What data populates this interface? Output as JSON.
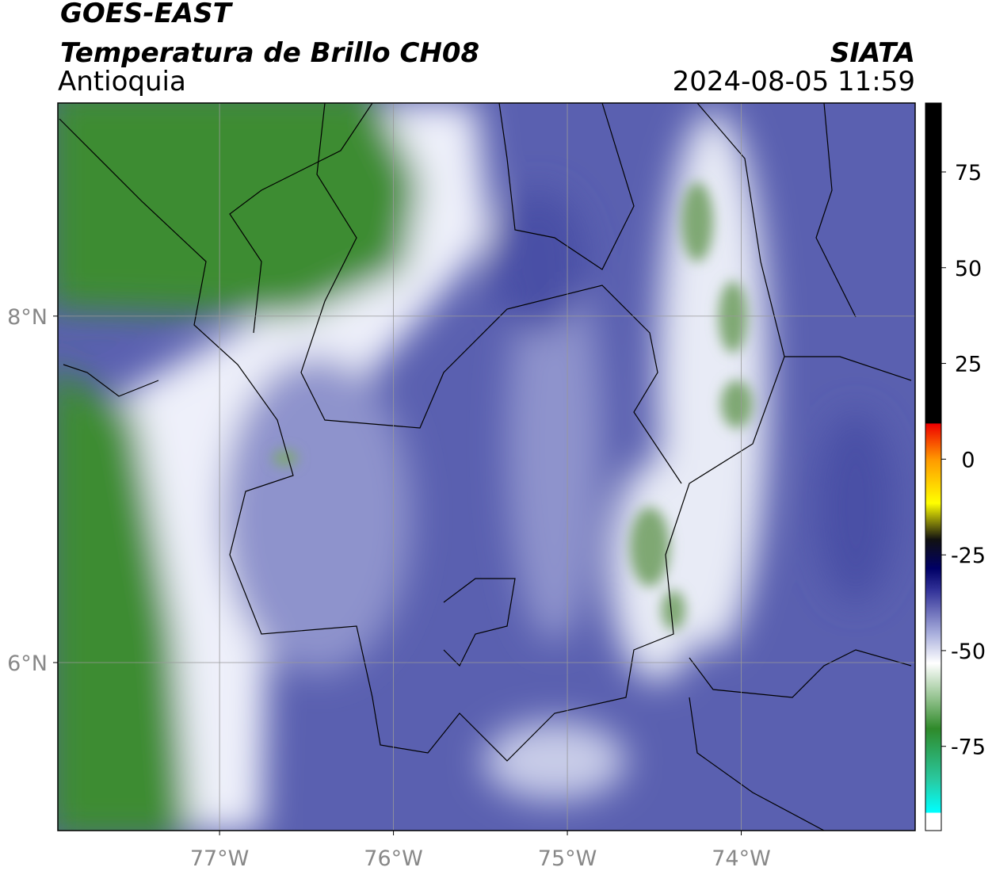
{
  "header": {
    "title": "GOES-EAST",
    "subtitle": "Temperatura de Brillo CH08",
    "region": "Antioquia",
    "source": "SIATA",
    "datetime": "2024-08-05 11:59"
  },
  "map": {
    "lon_range": [
      -77.93,
      -73.0
    ],
    "lat_range": [
      5.03,
      9.23
    ],
    "lon_ticks": [
      {
        "value": -77,
        "label": "77°W"
      },
      {
        "value": -76,
        "label": "76°W"
      },
      {
        "value": -75,
        "label": "75°W"
      },
      {
        "value": -74,
        "label": "74°W"
      }
    ],
    "lat_ticks": [
      {
        "value": 8,
        "label": "8°N"
      },
      {
        "value": 6,
        "label": "6°N"
      }
    ]
  },
  "colorbar": {
    "range": [
      -97,
      93
    ],
    "ticks": [
      75,
      50,
      25,
      0,
      -25,
      -50,
      -75
    ]
  }
}
